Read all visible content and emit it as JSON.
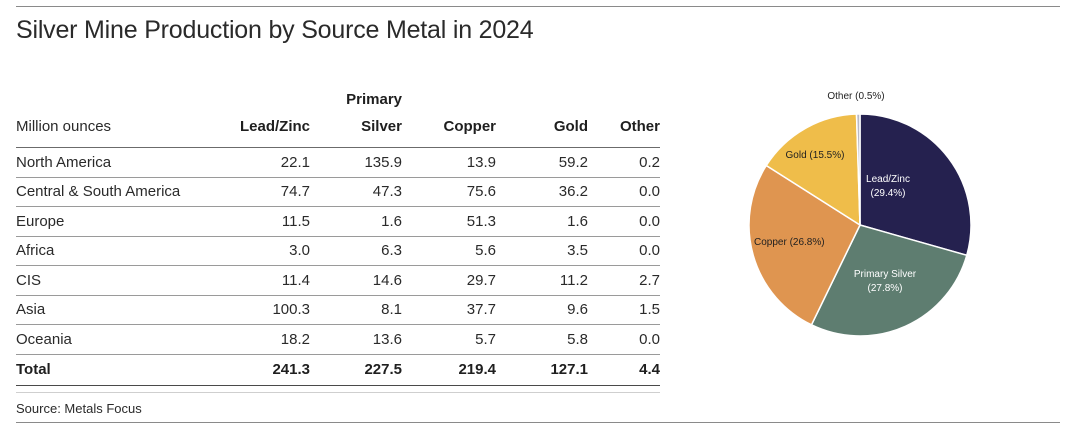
{
  "title": "Silver Mine Production by Source Metal in 2024",
  "source": "Source: Metals Focus",
  "colors": {
    "lead_zinc": "#25214f",
    "primary_silver": "#5e7d70",
    "copper": "#df9550",
    "gold": "#efbd4a",
    "other": "#b9b9c7"
  },
  "table": {
    "unit_label": "Million ounces",
    "headers": {
      "lead_zinc": "Lead/Zinc",
      "primary_top": "Primary",
      "primary_bottom": "Silver",
      "copper": "Copper",
      "gold": "Gold",
      "other": "Other"
    },
    "rows": [
      {
        "region": "North America",
        "lead_zinc": "22.1",
        "primary_silver": "135.9",
        "copper": "13.9",
        "gold": "59.2",
        "other": "0.2"
      },
      {
        "region": "Central & South America",
        "lead_zinc": "74.7",
        "primary_silver": "47.3",
        "copper": "75.6",
        "gold": "36.2",
        "other": "0.0"
      },
      {
        "region": "Europe",
        "lead_zinc": "11.5",
        "primary_silver": "1.6",
        "copper": "51.3",
        "gold": "1.6",
        "other": "0.0"
      },
      {
        "region": "Africa",
        "lead_zinc": "3.0",
        "primary_silver": "6.3",
        "copper": "5.6",
        "gold": "3.5",
        "other": "0.0"
      },
      {
        "region": "CIS",
        "lead_zinc": "11.4",
        "primary_silver": "14.6",
        "copper": "29.7",
        "gold": "11.2",
        "other": "2.7"
      },
      {
        "region": "Asia",
        "lead_zinc": "100.3",
        "primary_silver": "8.1",
        "copper": "37.7",
        "gold": "9.6",
        "other": "1.5"
      },
      {
        "region": "Oceania",
        "lead_zinc": "18.2",
        "primary_silver": "13.6",
        "copper": "5.7",
        "gold": "5.8",
        "other": "0.0"
      }
    ],
    "total": {
      "label": "Total",
      "lead_zinc": "241.3",
      "primary_silver": "227.5",
      "copper": "219.4",
      "gold": "127.1",
      "other": "4.4"
    }
  },
  "chart_data": {
    "type": "pie",
    "title": "",
    "categories": [
      "Lead/Zinc",
      "Primary Silver",
      "Copper",
      "Gold",
      "Other"
    ],
    "values": [
      29.4,
      27.8,
      26.8,
      15.5,
      0.5
    ],
    "labels": [
      [
        "Lead/Zinc",
        "(29.4%)"
      ],
      [
        "Primary Silver",
        "(27.8%)"
      ],
      [
        "Copper (26.8%)"
      ],
      [
        "Gold (15.5%)"
      ],
      [
        "Other (0.5%)"
      ]
    ],
    "start": "top, clockwise"
  }
}
